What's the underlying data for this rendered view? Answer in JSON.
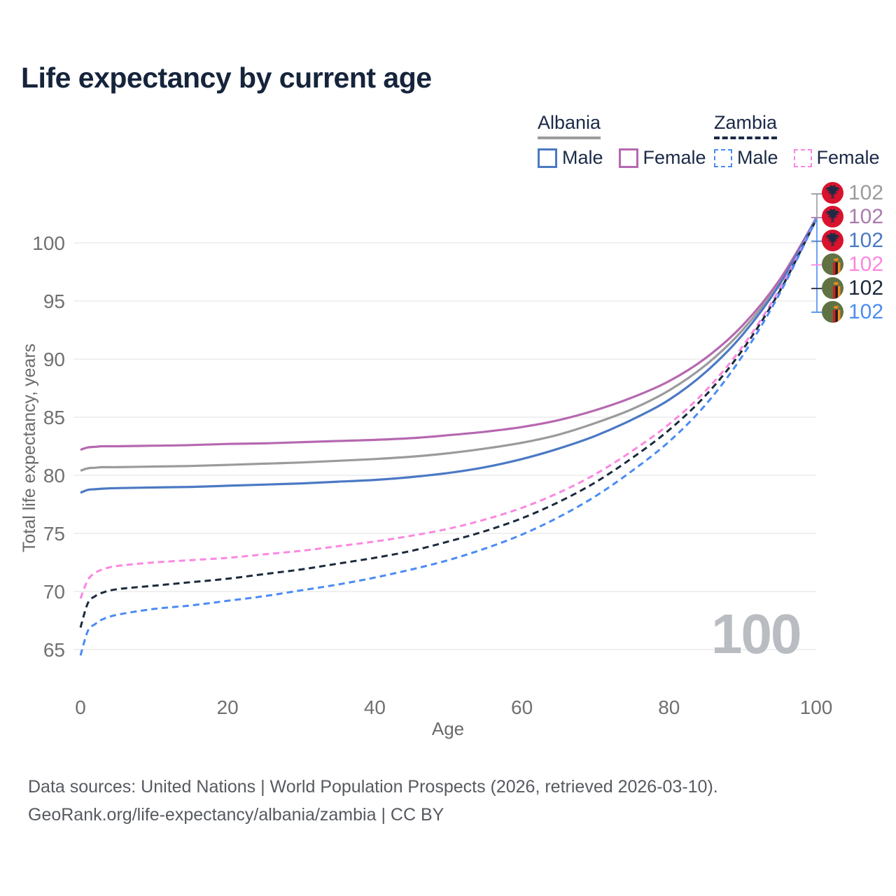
{
  "title": "Life expectancy by current age",
  "legend": {
    "albania": {
      "label": "Albania",
      "male": "Male",
      "female": "Female"
    },
    "zambia": {
      "label": "Zambia",
      "male": "Male",
      "female": "Female"
    }
  },
  "colors": {
    "albania_total": "#9b9b9d",
    "albania_female": "#b668b0",
    "albania_male": "#4b79c4",
    "zambia_female": "#fb87e0",
    "zambia_total": "#1b2a3c",
    "zambia_male": "#4b8bf5",
    "title_text": "#15243b",
    "legend_text": "#1b2a47",
    "axis_text": "#707070",
    "grid": "#ececec",
    "watermark": "#b9bdc2",
    "albania_flag_red": "#d9132d",
    "albania_flag_eagle": "#1d2b45",
    "zambia_flag_green": "#5f7243",
    "zambia_flag_red": "#ce2027",
    "zambia_flag_black": "#1e1e1e",
    "zambia_flag_orange": "#ee8d1f"
  },
  "watermark": "100",
  "axes": {
    "y_title": "Total life expectancy, years",
    "x_title": "Age",
    "y_ticks": [
      65,
      70,
      75,
      80,
      85,
      90,
      95,
      100
    ],
    "x_ticks": [
      0,
      20,
      40,
      60,
      80,
      100
    ]
  },
  "end_labels": [
    {
      "id": "albania-total",
      "flag": "albania",
      "value": "102",
      "color": "#9b9b9d"
    },
    {
      "id": "albania-female",
      "flag": "albania",
      "value": "102",
      "color": "#a97bad"
    },
    {
      "id": "albania-male",
      "flag": "albania",
      "value": "102",
      "color": "#4b79c4"
    },
    {
      "id": "zambia-female",
      "flag": "zambia",
      "value": "102",
      "color": "#fb87e0"
    },
    {
      "id": "zambia-total",
      "flag": "zambia",
      "value": "102",
      "color": "#1b2a3c"
    },
    {
      "id": "zambia-male",
      "flag": "zambia",
      "value": "102",
      "color": "#4c8df2"
    }
  ],
  "footer": {
    "line1": "Data sources: United Nations | World Population Prospects (2026, retrieved 2026-03-10).",
    "line2": "GeoRank.org/life-expectancy/albania/zambia | CC BY"
  },
  "chart_data": {
    "type": "line",
    "title": "Life expectancy by current age",
    "xlabel": "Age",
    "ylabel": "Total life expectancy, years",
    "xlim": [
      0,
      100
    ],
    "ylim": [
      63.5,
      103
    ],
    "grid": "horizontal",
    "legend_position": "top-right",
    "x": [
      0,
      1,
      2,
      3,
      5,
      10,
      15,
      20,
      25,
      30,
      35,
      40,
      45,
      50,
      55,
      60,
      65,
      70,
      75,
      80,
      85,
      90,
      95,
      100
    ],
    "series": [
      {
        "id": "albania-total",
        "name": "Albania Total",
        "color": "#9b9b9d",
        "dashed": false,
        "values": [
          80.4,
          80.6,
          80.65,
          80.7,
          80.7,
          80.75,
          80.8,
          80.9,
          81.0,
          81.1,
          81.25,
          81.4,
          81.6,
          81.9,
          82.3,
          82.8,
          83.5,
          84.5,
          85.7,
          87.3,
          89.5,
          92.5,
          96.6,
          102.15
        ]
      },
      {
        "id": "albania-female",
        "name": "Albania Female",
        "color": "#b668b0",
        "dashed": false,
        "values": [
          82.2,
          82.4,
          82.45,
          82.5,
          82.5,
          82.55,
          82.6,
          82.7,
          82.75,
          82.85,
          82.95,
          83.05,
          83.2,
          83.45,
          83.75,
          84.15,
          84.75,
          85.6,
          86.7,
          88.1,
          90.1,
          92.9,
          96.8,
          102.1
        ]
      },
      {
        "id": "albania-male",
        "name": "Albania Male",
        "color": "#4b79c4",
        "dashed": false,
        "values": [
          78.5,
          78.75,
          78.8,
          78.85,
          78.9,
          78.95,
          79.0,
          79.1,
          79.2,
          79.3,
          79.45,
          79.6,
          79.85,
          80.2,
          80.7,
          81.4,
          82.3,
          83.4,
          84.8,
          86.5,
          88.9,
          92.1,
          96.4,
          102.1
        ]
      },
      {
        "id": "zambia-female",
        "name": "Zambia Female",
        "color": "#fb87e0",
        "dashed": true,
        "values": [
          69.4,
          71.0,
          71.6,
          71.9,
          72.2,
          72.5,
          72.7,
          72.9,
          73.2,
          73.5,
          73.9,
          74.3,
          74.8,
          75.4,
          76.2,
          77.2,
          78.5,
          80.1,
          82.1,
          84.4,
          87.3,
          91.1,
          96.0,
          102.05
        ]
      },
      {
        "id": "zambia-total",
        "name": "Zambia Total",
        "color": "#1b2a3c",
        "dashed": true,
        "values": [
          66.9,
          69.0,
          69.6,
          69.9,
          70.2,
          70.5,
          70.8,
          71.1,
          71.5,
          71.9,
          72.4,
          72.9,
          73.5,
          74.3,
          75.2,
          76.3,
          77.7,
          79.4,
          81.5,
          83.9,
          86.9,
          90.8,
          95.8,
          102.0
        ]
      },
      {
        "id": "zambia-male",
        "name": "Zambia Male",
        "color": "#4b8bf5",
        "dashed": true,
        "values": [
          64.5,
          66.6,
          67.2,
          67.6,
          68.0,
          68.5,
          68.8,
          69.2,
          69.6,
          70.1,
          70.6,
          71.2,
          71.9,
          72.7,
          73.7,
          74.9,
          76.4,
          78.2,
          80.4,
          82.9,
          86.1,
          90.3,
          95.6,
          102.0
        ]
      }
    ]
  }
}
